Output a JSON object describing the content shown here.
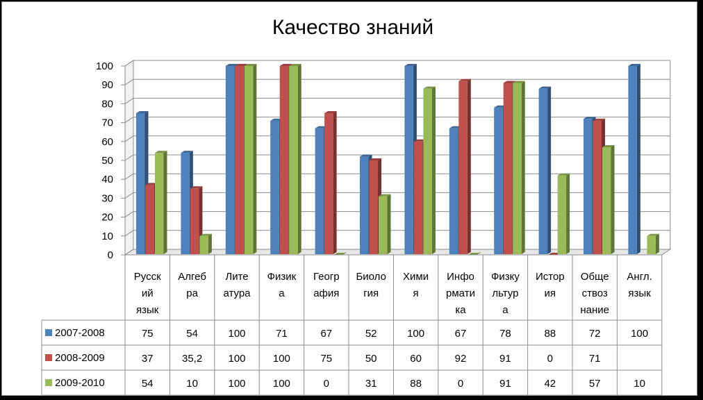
{
  "chart_data": {
    "type": "bar",
    "title": "Качество знаний",
    "xlabel": "",
    "ylabel": "",
    "ylim": [
      0,
      100
    ],
    "yticks": [
      0,
      10,
      20,
      30,
      40,
      50,
      60,
      70,
      80,
      90,
      100
    ],
    "grid": true,
    "three_d": true,
    "legend": "bottom-left, inside data table",
    "categories": [
      [
        "Русск",
        "ий",
        "язык"
      ],
      [
        "Алгеб",
        "ра"
      ],
      [
        "Лите",
        "атура"
      ],
      [
        "Физик",
        "а"
      ],
      [
        "Геогр",
        "афия"
      ],
      [
        "Биоло",
        "гия"
      ],
      [
        "Хими",
        "я"
      ],
      [
        "Инфо",
        "рмати",
        "ка"
      ],
      [
        "Физку",
        "льтур",
        "а"
      ],
      [
        "Истор",
        "ия"
      ],
      [
        "Обще",
        "ствоз",
        "нание"
      ],
      [
        "Англ.",
        "язык"
      ]
    ],
    "series": [
      {
        "name": "2007-2008",
        "color": "#4f81bd",
        "values": [
          75,
          54,
          100,
          71,
          67,
          52,
          100,
          67,
          78,
          88,
          72,
          100
        ],
        "labels": [
          "75",
          "54",
          "100",
          "71",
          "67",
          "52",
          "100",
          "67",
          "78",
          "88",
          "72",
          "100"
        ]
      },
      {
        "name": "2008-2009",
        "color": "#c0504d",
        "values": [
          37,
          35.2,
          100,
          100,
          75,
          50,
          60,
          92,
          91,
          0,
          71,
          null
        ],
        "labels": [
          "37",
          "35,2",
          "100",
          "100",
          "75",
          "50",
          "60",
          "92",
          "91",
          "0",
          "71",
          ""
        ]
      },
      {
        "name": "2009-2010",
        "color": "#9bbb59",
        "values": [
          54,
          10,
          100,
          100,
          0,
          31,
          88,
          0,
          91,
          42,
          57,
          10
        ],
        "labels": [
          "54",
          "10",
          "100",
          "100",
          "0",
          "31",
          "88",
          "0",
          "91",
          "42",
          "57",
          "10"
        ]
      }
    ]
  }
}
